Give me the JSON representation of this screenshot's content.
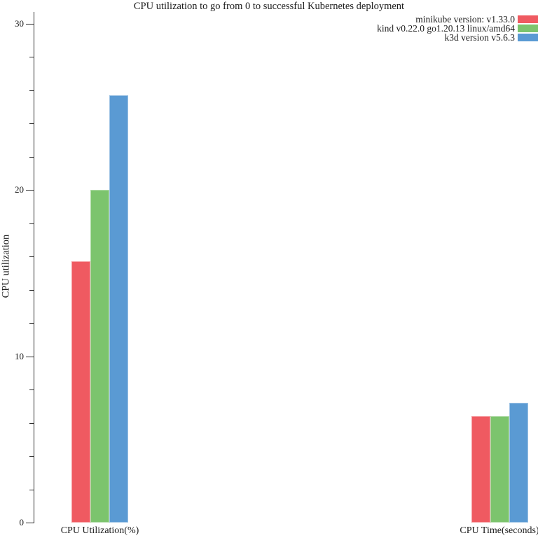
{
  "chart_data": {
    "type": "bar",
    "title": "CPU utilization to go from 0 to successful Kubernetes deployment",
    "ylabel": "CPU utilization",
    "xlabel": "",
    "categories": [
      "CPU Utilization(%)",
      "CPU Time(seconds)"
    ],
    "series": [
      {
        "name": "minikube version: v1.33.0",
        "color": "#ef5a61",
        "values": [
          15.7,
          6.4
        ]
      },
      {
        "name": "kind v0.22.0 go1.20.13 linux/amd64",
        "color": "#7cc46d",
        "values": [
          20.0,
          6.4
        ]
      },
      {
        "name": "k3d version v5.6.3",
        "color": "#5a9ad3",
        "values": [
          25.7,
          7.2
        ]
      }
    ],
    "ylim": [
      0,
      30.7
    ],
    "yticks_major": [
      0,
      10,
      20,
      30
    ],
    "ytick_minor_step": 2,
    "grid": false,
    "legend_position": "top-right",
    "axis_color": "#2e2e2e"
  }
}
